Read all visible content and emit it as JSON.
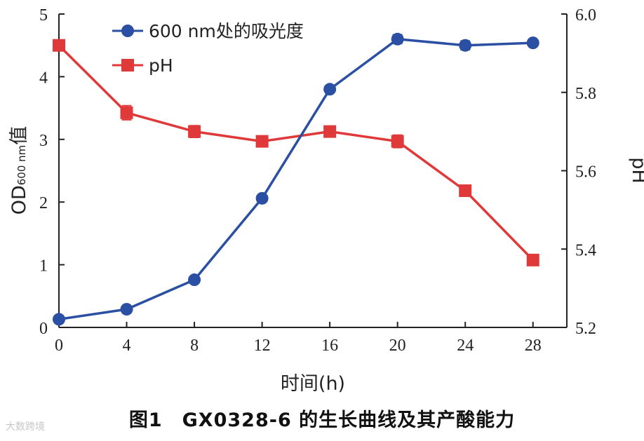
{
  "chart_data": {
    "type": "line",
    "x": [
      0,
      4,
      8,
      12,
      16,
      20,
      24,
      28
    ],
    "xlabel": "时间(h)",
    "xlim": [
      0,
      30
    ],
    "xticks": [
      "0",
      "4",
      "8",
      "12",
      "16",
      "20",
      "24",
      "28"
    ],
    "ylabel_left": "OD600 nm值",
    "ylim_left": [
      0,
      5
    ],
    "yticks_left": [
      "0",
      "1",
      "2",
      "3",
      "4",
      "5"
    ],
    "ylabel_right": "pH",
    "ylim_right": [
      5.2,
      6.0
    ],
    "yticks_right": [
      "5.2",
      "5.4",
      "5.6",
      "5.8",
      "6.0"
    ],
    "grid": false,
    "legend_position": "top-left",
    "series": [
      {
        "name": "600 nm处的吸光度",
        "axis": "left",
        "marker": "circle",
        "color": "#2a4fa3",
        "values": [
          0.13,
          0.29,
          0.76,
          2.06,
          3.8,
          4.6,
          4.5,
          4.54
        ],
        "errors": [
          0.02,
          0.02,
          0.02,
          0.03,
          0.03,
          0.07,
          0.07,
          0.03
        ]
      },
      {
        "name": "pH",
        "axis": "right",
        "marker": "square",
        "color": "#e0393a",
        "values": [
          5.92,
          5.748,
          5.7,
          5.675,
          5.7,
          5.675,
          5.549,
          5.372
        ],
        "errors": [
          0.0,
          0.018,
          0.015,
          0.006,
          0.005,
          0.016,
          0.005,
          0.011
        ]
      }
    ]
  },
  "caption": "图1　GX0328-6 的生长曲线及其产酸能力",
  "watermark": "大数跨境"
}
